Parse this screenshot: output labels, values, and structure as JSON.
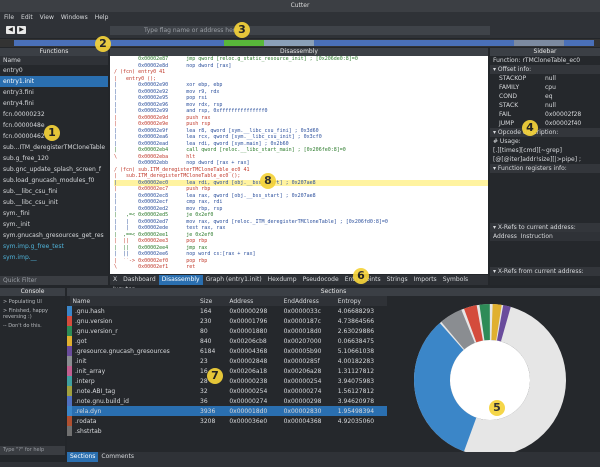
{
  "window": {
    "title": "Cutter"
  },
  "menu": [
    "File",
    "Edit",
    "View",
    "Windows",
    "Help"
  ],
  "toolbar": {
    "search": "Type flag name or address here"
  },
  "functions": {
    "title": "Functions",
    "header": "Name",
    "items": [
      "entry0",
      "entry1.init",
      "entry3.fini",
      "entry4.fini",
      "fcn.00000232",
      "fcn.0000048e",
      "fcn.00000462",
      "sub...ITM_deregisterTMCloneTable",
      "sub.g_free_120",
      "sub.gnc_update_splash_screen_f",
      "sub.load_gnucash_modules_f0",
      "sub.__libc_csu_fini",
      "sub.__libc_csu_init",
      "sym._fini",
      "sym._init",
      "sym.gnucash_gresources_get_res",
      "sym.imp.g_free_test",
      "sym.imp.__"
    ],
    "filter": "Quick Filter"
  },
  "disassembly": {
    "title": "Disassembly",
    "lines": [
      {
        "text": "        0x00002e87      jmp qword [reloc.g_static_resource_init] ; [0x206de0:8]=0",
        "color": "#2a7a2a"
      },
      {
        "text": "        0x00002e8d      nop dword [rax]",
        "color": "#2b4f9c"
      },
      {
        "text": "/ (fcn) entry0 41",
        "color": "#c0392b"
      },
      {
        "text": "|   entry0 ();",
        "color": "#c0392b"
      },
      {
        "text": "|       0x00002e90      xor ebp, ebp",
        "color": "#2b4f9c"
      },
      {
        "text": "|       0x00002e92      mov r9, rdx",
        "color": "#2b4f9c"
      },
      {
        "text": "|       0x00002e95      pop rsi",
        "color": "#2b4f9c"
      },
      {
        "text": "|       0x00002e96      mov rdx, rsp",
        "color": "#2b4f9c"
      },
      {
        "text": "|       0x00002e99      and rsp, 0xfffffffffffffff0",
        "color": "#2b4f9c"
      },
      {
        "text": "|       0x00002e9d      push rax",
        "color": "#c0392b"
      },
      {
        "text": "|       0x00002e9e      push rsp",
        "color": "#c0392b"
      },
      {
        "text": "|       0x00002e9f      lea r8, qword [sym.__libc_csu_fini] ; 0x3d60",
        "color": "#2b4f9c"
      },
      {
        "text": "|       0x00002ea6      lea rcx, qword [sym.__libc_csu_init] ; 0x3cf0",
        "color": "#2b4f9c"
      },
      {
        "text": "|       0x00002ead      lea rdi, qword [sym.main] ; 0x2b60",
        "color": "#2b4f9c"
      },
      {
        "text": "|       0x00002eb4      call qword [reloc.__libc_start_main] ; [0x206fe0:8]=0",
        "color": "#2a7a2a"
      },
      {
        "text": "\\       0x00002eba      hlt",
        "color": "#c0392b"
      },
      {
        "text": "        0x00002ebb      nop dword [rax + rax]",
        "color": "#2b4f9c"
      },
      {
        "text": "/ (fcn) sub.ITM_deregisterTMCloneTable_ec0 41",
        "color": "#c0392b"
      },
      {
        "text": "|   sub.ITM_deregisterTMCloneTable_ec0 ();",
        "color": "#c0392b"
      },
      {
        "text": "|       0x00002ec0      lea rdi, qword [obj.__bss_start] ; 0x207ae8",
        "color": "#2b4f9c"
      },
      {
        "text": "|       0x00002ec7      push rbp",
        "color": "#c0392b"
      },
      {
        "text": "|       0x00002ec8      lea rax, qword [obj.__bss_start] ; 0x207ae8",
        "color": "#2b4f9c"
      },
      {
        "text": "|       0x00002ecf      cmp rax, rdi",
        "color": "#2b4f9c"
      },
      {
        "text": "|       0x00002ed2      mov rbp, rsp",
        "color": "#2b4f9c"
      },
      {
        "text": "|   ,=< 0x00002ed5      je 0x2ef0",
        "color": "#2a7a2a"
      },
      {
        "text": "|   |   0x00002ed7      mov rax, qword [reloc._ITM_deregisterTMCloneTable] ; [0x206fd0:8]=0",
        "color": "#2b4f9c"
      },
      {
        "text": "|   |   0x00002ede      test rax, rax",
        "color": "#2b4f9c"
      },
      {
        "text": "|  ,==< 0x00002ee1      je 0x2ef0",
        "color": "#2a7a2a"
      },
      {
        "text": "|  ||   0x00002ee3      pop rbp",
        "color": "#c0392b"
      },
      {
        "text": "|  ||   0x00002ee4      jmp rax",
        "color": "#2a7a2a"
      },
      {
        "text": "|  ||   0x00002ee6      nop word cs:[rax + rax]",
        "color": "#2b4f9c"
      },
      {
        "text": "|  ``-> 0x00002ef0      pop rbp",
        "color": "#c0392b"
      },
      {
        "text": "\\       0x00002ef1      ret",
        "color": "#c0392b"
      }
    ]
  },
  "sidebar": {
    "title": "Sidebar",
    "function_label": "Function:",
    "function_name": "rTMCloneTable_ec0",
    "offset_info": "Offset info:",
    "rows": [
      [
        "STACKOP",
        "null"
      ],
      [
        "FAMILY",
        "cpu"
      ],
      [
        "COND",
        "eq"
      ],
      [
        "STACK",
        "null"
      ],
      [
        "FAIL",
        "0x00002f28"
      ],
      [
        "JUMP",
        "0x00002f40"
      ]
    ],
    "opcode_description": "Opcode description:",
    "usage": "# Usage:",
    "usage_lines": [
      "[.][times][cmd][~grep]",
      "[@[@iter]addr!size][|>pipe] ;"
    ],
    "function_registers": "Function registers info:",
    "xrefs_to": "X-Refs to current address:",
    "xrefs_headers": [
      "Address",
      "Instruction"
    ],
    "xrefs_from": "X-Refs from current address:"
  },
  "tabs": [
    "Dashboard",
    "Disassembly",
    "Graph (entry1.init)",
    "Hexdump",
    "Pseudocode",
    "Entry Points",
    "Strings",
    "Imports",
    "Symbols",
    "Jupyter"
  ],
  "console": {
    "title": "Console",
    "lines": [
      "> Populating UI",
      "> Finished, happy reversing :)",
      "-- Don't do this."
    ],
    "input": "Type \"?\" for help"
  },
  "sections": {
    "title": "Sections",
    "columns": [
      "Name",
      "Size",
      "Address",
      "EndAddress",
      "Entropy"
    ],
    "rows": [
      [
        ".gnu.hash",
        "164",
        "0x00000298",
        "0x0000033c",
        "4.06688293"
      ],
      [
        ".gnu.version",
        "230",
        "0x00001796",
        "0x0000187c",
        "4.73864566"
      ],
      [
        ".gnu.version_r",
        "80",
        "0x00001880",
        "0x000018d0",
        "2.63029886"
      ],
      [
        ".got",
        "840",
        "0x00206cb8",
        "0x00207000",
        "0.06638475"
      ],
      [
        ".gresource.gnucash_gresources",
        "6184",
        "0x00004368",
        "0x00005b90",
        "5.10661038"
      ],
      [
        ".init",
        "23",
        "0x00002848",
        "0x0000285f",
        "4.00182283"
      ],
      [
        ".init_array",
        "16",
        "0x00206a18",
        "0x00206a28",
        "1.31127812"
      ],
      [
        ".interp",
        "28",
        "0x00000238",
        "0x00000254",
        "3.94075983"
      ],
      [
        ".note.ABI_tag",
        "32",
        "0x00000254",
        "0x00000274",
        "1.56127812"
      ],
      [
        ".note.gnu.build_id",
        "36",
        "0x00000274",
        "0x00000298",
        "3.94620978"
      ],
      [
        ".rela.dyn",
        "3936",
        "0x000018d0",
        "0x00002830",
        "1.95498394"
      ],
      [
        ".rodata",
        "3208",
        "0x000036e0",
        "0x00004368",
        "4.92035060"
      ],
      [
        ".shstrtab",
        "",
        "",
        "",
        ""
      ]
    ]
  },
  "bottom_tabs": [
    "Sections",
    "Comments"
  ],
  "annotations": [
    "1",
    "2",
    "3",
    "4",
    "5",
    "6",
    "7",
    "8"
  ]
}
